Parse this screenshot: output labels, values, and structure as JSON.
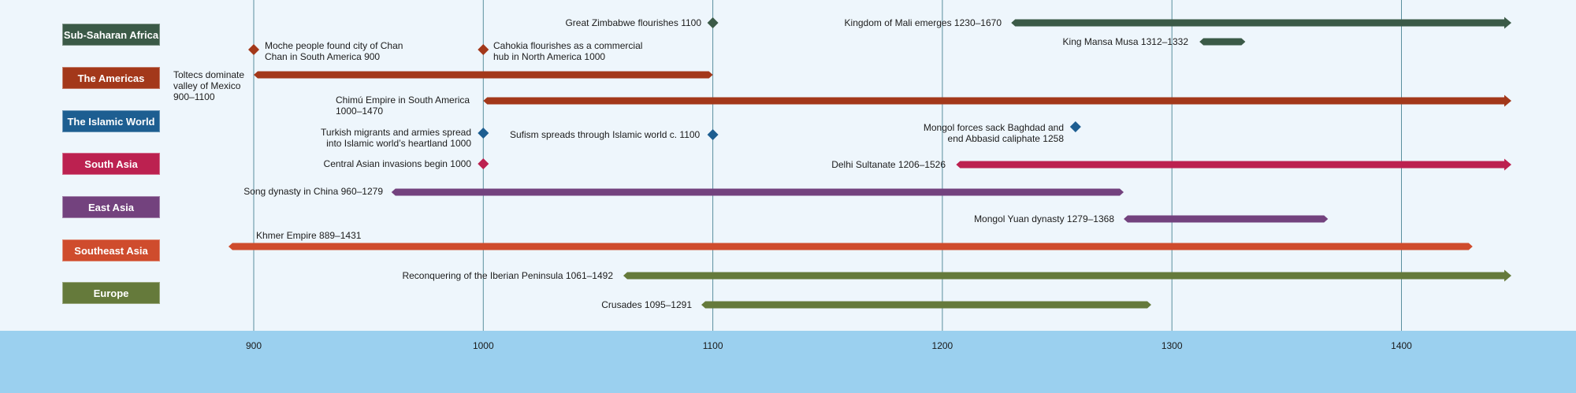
{
  "regions": [
    {
      "key": "africa",
      "label": "Sub-Saharan Africa",
      "color": "#3b5a47"
    },
    {
      "key": "americas",
      "label": "The Americas",
      "color": "#a3381a"
    },
    {
      "key": "islamic",
      "label": "The Islamic World",
      "color": "#1d5e91"
    },
    {
      "key": "southasia",
      "label": "South Asia",
      "color": "#bc2150"
    },
    {
      "key": "eastasia",
      "label": "East Asia",
      "color": "#73427e"
    },
    {
      "key": "seasia",
      "label": "Southeast Asia",
      "color": "#cf4c2d"
    },
    {
      "key": "europe",
      "label": "Europe",
      "color": "#657a3b"
    }
  ],
  "axis": {
    "ticks": [
      "900",
      "1000",
      "1100",
      "1200",
      "1300",
      "1400"
    ],
    "gridline_color": "#5a8f9e"
  },
  "events": [
    {
      "id": "great-zimbabwe",
      "region": "africa",
      "kind": "point",
      "year": 1100,
      "text": "Great Zimbabwe flourishes 1100"
    },
    {
      "id": "kingdom-of-mali",
      "region": "africa",
      "kind": "range",
      "start": 1230,
      "end": 1670,
      "continues": true,
      "text": "Kingdom of Mali emerges 1230–1670"
    },
    {
      "id": "mansa-musa",
      "region": "africa",
      "kind": "range",
      "start": 1312,
      "end": 1332,
      "continues": false,
      "text": "King Mansa Musa 1312–1332"
    },
    {
      "id": "chan-chan",
      "region": "americas",
      "kind": "point",
      "year": 900,
      "text": "Moche people found city of Chan\nChan in South America 900"
    },
    {
      "id": "cahokia",
      "region": "americas",
      "kind": "point",
      "year": 1000,
      "text": "Cahokia flourishes as a commercial\nhub in North America 1000"
    },
    {
      "id": "toltecs",
      "region": "americas",
      "kind": "range",
      "start": 900,
      "end": 1100,
      "continues": false,
      "text": "Toltecs dominate\nvalley of Mexico\n900–1100"
    },
    {
      "id": "chimu",
      "region": "americas",
      "kind": "range",
      "start": 1000,
      "end": 1470,
      "continues": true,
      "text": "Chimú Empire in South America\n1000–1470"
    },
    {
      "id": "turkish-migrants",
      "region": "islamic",
      "kind": "point",
      "year": 1000,
      "text": "Turkish migrants and armies spread\ninto Islamic world’s heartland 1000"
    },
    {
      "id": "sufism",
      "region": "islamic",
      "kind": "point",
      "year": 1100,
      "text": "Sufism spreads through Islamic world c. 1100"
    },
    {
      "id": "baghdad",
      "region": "islamic",
      "kind": "point",
      "year": 1258,
      "text": "Mongol forces sack Baghdad and\nend Abbasid caliphate 1258"
    },
    {
      "id": "central-asian",
      "region": "southasia",
      "kind": "point",
      "year": 1000,
      "text": "Central Asian invasions begin 1000"
    },
    {
      "id": "delhi",
      "region": "southasia",
      "kind": "range",
      "start": 1206,
      "end": 1526,
      "continues": true,
      "text": "Delhi Sultanate 1206–1526"
    },
    {
      "id": "song",
      "region": "eastasia",
      "kind": "range",
      "start": 960,
      "end": 1279,
      "continues": false,
      "text": "Song dynasty in China 960–1279"
    },
    {
      "id": "yuan",
      "region": "eastasia",
      "kind": "range",
      "start": 1279,
      "end": 1368,
      "continues": false,
      "text": "Mongol Yuan dynasty 1279–1368"
    },
    {
      "id": "khmer",
      "region": "seasia",
      "kind": "range",
      "start": 889,
      "end": 1431,
      "continues": false,
      "text": "Khmer Empire 889–1431"
    },
    {
      "id": "reconquista",
      "region": "europe",
      "kind": "range",
      "start": 1061,
      "end": 1492,
      "continues": true,
      "text": "Reconquering of the Iberian Peninsula 1061–1492"
    },
    {
      "id": "crusades",
      "region": "europe",
      "kind": "range",
      "start": 1095,
      "end": 1291,
      "continues": false,
      "text": "Crusades 1095–1291"
    }
  ]
}
